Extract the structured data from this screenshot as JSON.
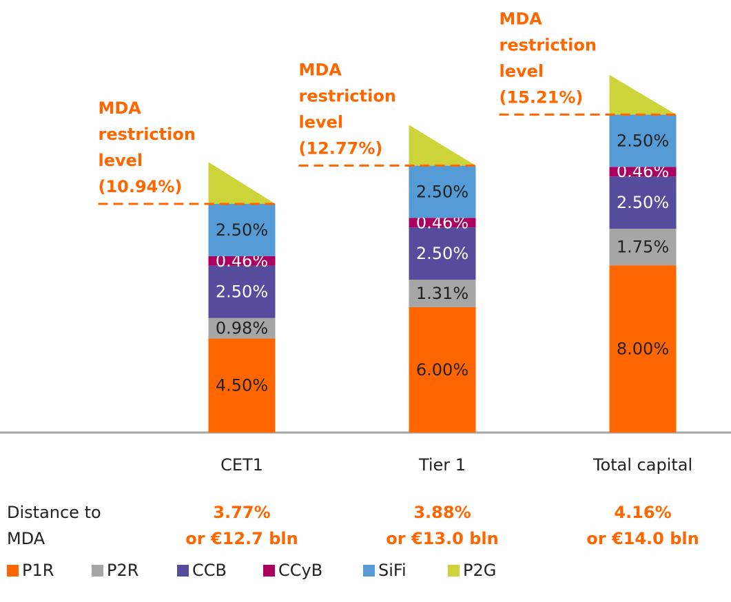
{
  "chart_data": {
    "type": "stacked_bar",
    "categories": [
      "CET1",
      "Tier 1",
      "Total capital"
    ],
    "ylim": [
      0,
      20
    ],
    "series": [
      {
        "name": "P1R",
        "color": "#ff6600",
        "label_color": "#222222",
        "values": [
          4.5,
          6.0,
          8.0
        ],
        "value_labels": [
          "4.50%",
          "6.00%",
          "8.00%"
        ]
      },
      {
        "name": "P2R",
        "color": "#a6a6a6",
        "label_color": "#222222",
        "values": [
          0.98,
          1.31,
          1.75
        ],
        "value_labels": [
          "0.98%",
          "1.31%",
          "1.75%"
        ]
      },
      {
        "name": "CCB",
        "color": "#564c9d",
        "label_color": "#ffffff",
        "values": [
          2.5,
          2.5,
          2.5
        ],
        "value_labels": [
          "2.50%",
          "2.50%",
          "2.50%"
        ]
      },
      {
        "name": "CCyB",
        "color": "#ab0060",
        "label_color": "#ffffff",
        "values": [
          0.46,
          0.46,
          0.46
        ],
        "value_labels": [
          "0.46%",
          "0.46%",
          "0.46%"
        ]
      },
      {
        "name": "SiFi",
        "color": "#559bd6",
        "label_color": "#222222",
        "values": [
          2.5,
          2.5,
          2.5
        ],
        "value_labels": [
          "2.50%",
          "2.50%",
          "2.50%"
        ]
      },
      {
        "name": "P2G",
        "color": "#cdd43a",
        "shape": "triangle",
        "values": [
          2.0,
          1.95,
          1.9
        ]
      }
    ],
    "annotations": [
      {
        "value": 10.94,
        "lines": [
          "MDA",
          "restriction",
          "level",
          "(10.94%)"
        ]
      },
      {
        "value": 12.77,
        "lines": [
          "MDA",
          "restriction",
          "level",
          "(12.77%)"
        ]
      },
      {
        "value": 15.21,
        "lines": [
          "MDA",
          "restriction",
          "level",
          "(15.21%)"
        ]
      }
    ],
    "distance": {
      "label": [
        "Distance to",
        "MDA"
      ],
      "values": [
        [
          "3.77%",
          "or €12.7 bln"
        ],
        [
          "3.88%",
          "or €13.0 bln"
        ],
        [
          "4.16%",
          "or €14.0 bln"
        ]
      ]
    },
    "legend": "bottom-left"
  }
}
